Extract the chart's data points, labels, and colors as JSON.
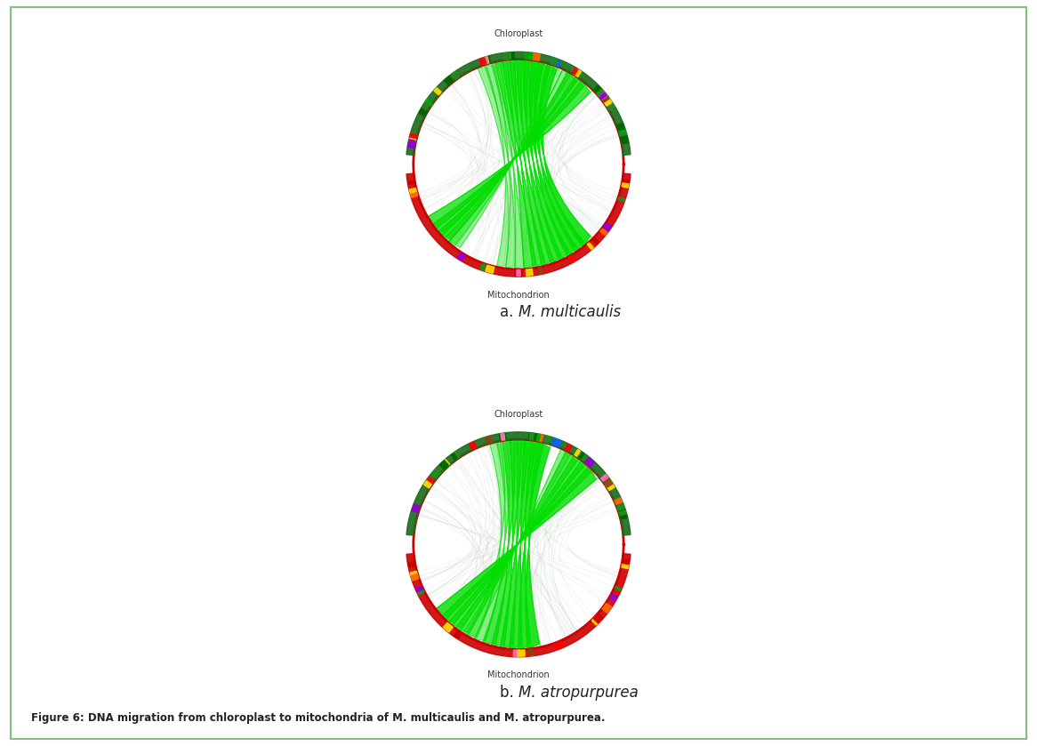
{
  "figure_bg": "#ffffff",
  "border_color": "#7fbf7f",
  "label_chloroplast": "Chloroplast",
  "label_mitochondrion": "Mitochondrion",
  "circle_color": "#cc0000",
  "green_ribbon_color": "#00dd00",
  "gray_line_color": "#bbbbbb",
  "caption": "Figure 6: DNA migration from chloroplast to mitochondria of M. multicaulis and M. atropurpurea.",
  "gene_colors_cp": [
    "#006600",
    "#228B22",
    "#00aa00",
    "#006600",
    "#228B22",
    "#FF6600",
    "#FFD700",
    "#8B4513",
    "#FF69B4",
    "#9400D3",
    "#228B22",
    "#006600",
    "#228B22",
    "#FFD700",
    "#FF0000",
    "#0066FF",
    "#228B22",
    "#FF6600",
    "#00aa00",
    "#006600",
    "#228B22",
    "#006600",
    "#FFD700",
    "#FF69B4",
    "#8B4513",
    "#FF0000",
    "#228B22",
    "#006600",
    "#FFD700",
    "#00aa00",
    "#006600",
    "#228B22",
    "#FF0000",
    "#FFD700",
    "#9400D3"
  ],
  "gene_colors_mt": [
    "#cc0000",
    "#FFD700",
    "#FF6600",
    "#9400D3",
    "#228B22",
    "#FFD700",
    "#cc0000",
    "#FF69B4",
    "#FFD700",
    "#8B4513",
    "#FF0000",
    "#FFD700",
    "#cc0000",
    "#FF6600",
    "#9400D3",
    "#228B22",
    "#FFD700",
    "#cc0000",
    "#FF69B4",
    "#FFD700"
  ]
}
